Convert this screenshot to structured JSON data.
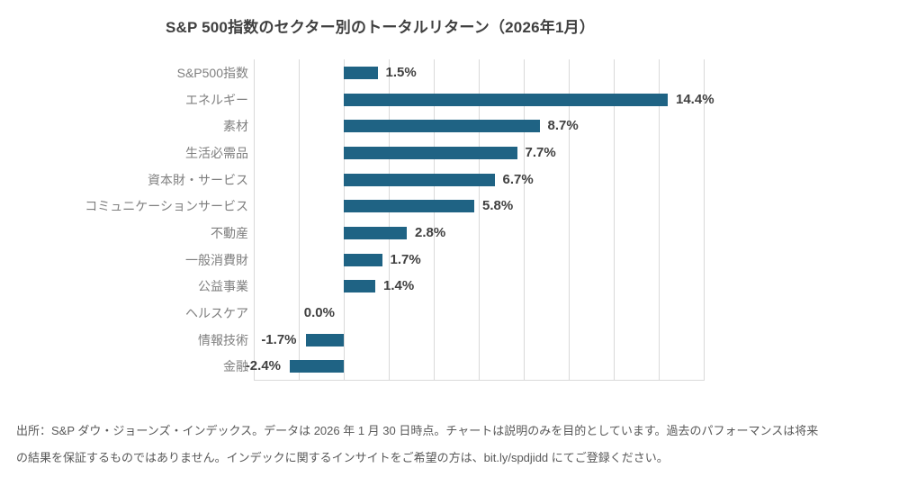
{
  "title": "S&P 500指数のセクター別のトータルリターン（2026年1月）",
  "footer": {
    "lines": [
      "出所：S&P ダウ・ジョーンズ・インデックス。データは 2026 年 1 月 30 日時点。チャートは説明のみを目的としています。過去のパフォーマンスは将来",
      "の結果を保証するものではありません。インデックに関するインサイトをご希望の方は、bit.ly/spdjidd にてご登録ください。"
    ]
  },
  "colors": {
    "background": "#ffffff",
    "bar": "#1f6384",
    "gridline": "#d9d9d9",
    "category_label": "#7f7f7f",
    "value_label": "#404040",
    "title": "#404040",
    "footer": "#595959"
  },
  "chart_data": {
    "type": "bar",
    "orientation": "horizontal",
    "title": "S&P 500指数のセクター別のトータルリターン（2026年1月）",
    "categories": [
      "S&P500指数",
      "エネルギー",
      "素材",
      "生活必需品",
      "資本財・サービス",
      "コミュニケーションサービス",
      "不動産",
      "一般消費財",
      "公益事業",
      "ヘルスケア",
      "情報技術",
      "金融"
    ],
    "values": [
      1.5,
      14.4,
      8.7,
      7.7,
      6.7,
      5.8,
      2.8,
      1.7,
      1.4,
      0.0,
      -1.7,
      -2.4
    ],
    "value_labels": [
      "1.5%",
      "14.4%",
      "8.7%",
      "7.7%",
      "6.7%",
      "5.8%",
      "2.8%",
      "1.7%",
      "1.4%",
      "0.0%",
      "-1.7%",
      "-2.4%"
    ],
    "unit": "%",
    "xlabel": "",
    "ylabel": "",
    "xlim": [
      -4,
      16
    ],
    "grid_step": 2,
    "grid": true,
    "legend": false
  }
}
